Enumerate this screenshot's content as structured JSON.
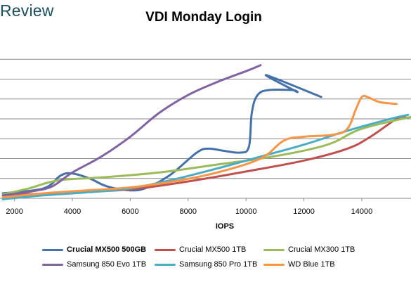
{
  "header": {
    "logo_text": "Review"
  },
  "chart_data": {
    "type": "line",
    "title": "VDI Monday Login",
    "xlabel": "IOPS",
    "ylabel": "",
    "xlim": [
      1500,
      15700
    ],
    "x_ticks": [
      2000,
      4000,
      6000,
      8000,
      10000,
      12000,
      14000
    ],
    "x_tick_labels": [
      "2000",
      "4000",
      "6000",
      "8000",
      "10000",
      "12000",
      "14000"
    ],
    "ylim": [
      0,
      8
    ],
    "gridlines": [
      1,
      2,
      3,
      4,
      5,
      6,
      7
    ],
    "grid": true,
    "legend_position": "bottom",
    "series": [
      {
        "name": "Crucial MX500 500GB",
        "color": "#4472a8",
        "bold": true,
        "points": [
          [
            1600,
            0.25
          ],
          [
            3000,
            0.5
          ],
          [
            3600,
            1.15
          ],
          [
            4000,
            1.25
          ],
          [
            4600,
            1.0
          ],
          [
            5200,
            0.6
          ],
          [
            6000,
            0.4
          ],
          [
            6600,
            0.55
          ],
          [
            7400,
            1.2
          ],
          [
            8300,
            2.3
          ],
          [
            8700,
            2.5
          ],
          [
            9200,
            2.4
          ],
          [
            9800,
            2.3
          ],
          [
            10100,
            2.6
          ],
          [
            10200,
            4.3
          ],
          [
            10400,
            5.2
          ],
          [
            10800,
            5.45
          ],
          [
            11600,
            5.45
          ],
          [
            11700,
            5.4
          ],
          [
            10700,
            6.2
          ],
          [
            12600,
            5.1
          ]
        ]
      },
      {
        "name": "Crucial MX500 1TB",
        "color": "#c0504d",
        "bold": false,
        "points": [
          [
            1600,
            0.15
          ],
          [
            4000,
            0.3
          ],
          [
            6000,
            0.45
          ],
          [
            8000,
            0.85
          ],
          [
            10000,
            1.35
          ],
          [
            12000,
            1.9
          ],
          [
            13500,
            2.5
          ],
          [
            14300,
            3.1
          ],
          [
            15200,
            4.0
          ],
          [
            15500,
            4.1
          ]
        ]
      },
      {
        "name": "Crucial MX300 1TB",
        "color": "#9bbb59",
        "bold": false,
        "points": [
          [
            1600,
            0.2
          ],
          [
            2500,
            0.5
          ],
          [
            3500,
            0.9
          ],
          [
            5000,
            1.05
          ],
          [
            7000,
            1.3
          ],
          [
            9000,
            1.7
          ],
          [
            10500,
            2.0
          ],
          [
            12000,
            2.4
          ],
          [
            13000,
            2.8
          ],
          [
            14000,
            3.5
          ],
          [
            15700,
            4.1
          ]
        ]
      },
      {
        "name": "Samsung 850 Evo 1TB",
        "color": "#8064a2",
        "bold": false,
        "points": [
          [
            1600,
            0.15
          ],
          [
            2600,
            0.35
          ],
          [
            3300,
            0.6
          ],
          [
            4000,
            1.3
          ],
          [
            5000,
            2.1
          ],
          [
            6000,
            3.1
          ],
          [
            7000,
            4.3
          ],
          [
            8000,
            5.2
          ],
          [
            9000,
            5.85
          ],
          [
            10000,
            6.4
          ],
          [
            10500,
            6.7
          ]
        ]
      },
      {
        "name": "Samsung 850 Pro 1TB",
        "color": "#4bacc6",
        "bold": false,
        "points": [
          [
            1600,
            -0.05
          ],
          [
            3000,
            0.15
          ],
          [
            4500,
            0.3
          ],
          [
            6000,
            0.5
          ],
          [
            7500,
            0.95
          ],
          [
            9000,
            1.5
          ],
          [
            10500,
            2.1
          ],
          [
            12000,
            2.7
          ],
          [
            13500,
            3.4
          ],
          [
            15000,
            4.0
          ],
          [
            15600,
            4.2
          ]
        ]
      },
      {
        "name": "WD Blue 1TB",
        "color": "#f79646",
        "bold": false,
        "points": [
          [
            1600,
            0.05
          ],
          [
            3000,
            0.25
          ],
          [
            4500,
            0.4
          ],
          [
            6000,
            0.55
          ],
          [
            7500,
            0.85
          ],
          [
            9000,
            1.3
          ],
          [
            10500,
            2.0
          ],
          [
            11300,
            2.9
          ],
          [
            12000,
            3.1
          ],
          [
            13000,
            3.2
          ],
          [
            13500,
            3.5
          ],
          [
            13800,
            4.5
          ],
          [
            14000,
            5.1
          ],
          [
            14200,
            5.1
          ],
          [
            14600,
            4.85
          ],
          [
            15200,
            4.75
          ]
        ]
      }
    ]
  }
}
